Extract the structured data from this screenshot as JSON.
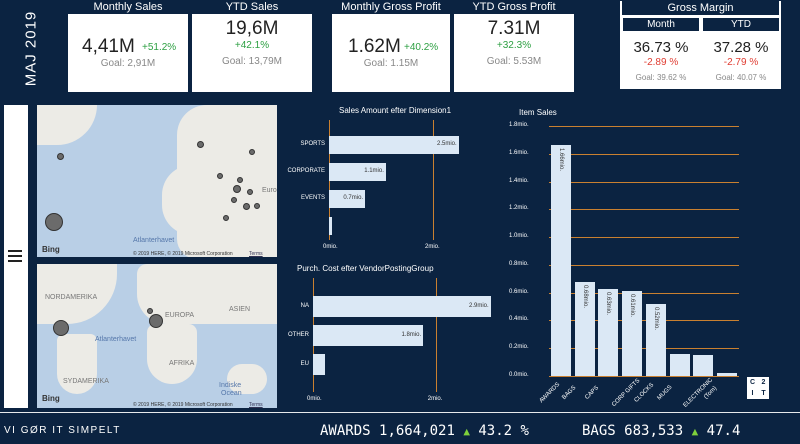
{
  "month_label": "MAJ 2019",
  "kpis": [
    {
      "title": "Monthly Sales",
      "value": "4,41M",
      "pct": "+51.2%",
      "goal": "Goal: 2,91M"
    },
    {
      "title": "YTD Sales",
      "value": "19,6M",
      "pct": "+42.1%",
      "goal": "Goal: 13,79M"
    },
    {
      "title": "Monthly Gross Profit",
      "value": "1.62M",
      "pct": "+40.2%",
      "goal": "Goal: 1.15M"
    },
    {
      "title": "YTD Gross Profit",
      "value": "7.31M",
      "pct": "+32.3%",
      "goal": "Goal: 5.53M"
    }
  ],
  "gross_margin": {
    "title": "Gross Margin",
    "month": {
      "label": "Month",
      "value": "36.73 %",
      "pct": "-2.89 %",
      "goal": "Goal: 39.62 %"
    },
    "ytd": {
      "label": "YTD",
      "value": "37.28 %",
      "pct": "-2.79 %",
      "goal": "Goal: 40.07 %"
    }
  },
  "maps": {
    "map1": {
      "ocean_label": "Atlanterhavet",
      "edge_label": "Euro",
      "bing": "Bing",
      "copyright": "© 2019 HERE, © 2019 Microsoft Corporation",
      "terms": "Terms"
    },
    "map2": {
      "labels": [
        "NORDAMERIKA",
        "EUROPA",
        "ASIEN",
        "Atlanterhavet",
        "AFRIKA",
        "SYDAMERIKA",
        "Indiske",
        "Ocean"
      ],
      "bing": "Bing",
      "copyright": "© 2019 HERE, © 2019 Microsoft Corporation",
      "terms": "Terms"
    }
  },
  "colors": {
    "background": "#0b2341",
    "positive": "#2ea043",
    "negative": "#e03c31",
    "bar": "#dbe8f5",
    "grid": "#c98030"
  },
  "chart_data": [
    {
      "type": "bar",
      "title": "Sales Amount efter Dimension1",
      "orientation": "horizontal",
      "categories": [
        "SPORTS",
        "CORPORATE",
        "EVENTS",
        ""
      ],
      "values": [
        2.5,
        1.1,
        0.7,
        0.05
      ],
      "value_labels": [
        "2.5mio.",
        "1.1mio.",
        "0.7mio.",
        ""
      ],
      "xticks": [
        "0mio.",
        "2mio."
      ],
      "xlim": [
        0,
        2.5
      ]
    },
    {
      "type": "bar",
      "title": "Purch. Cost efter VendorPostingGroup",
      "orientation": "horizontal",
      "categories": [
        "NA",
        "OTHER",
        "EU"
      ],
      "values": [
        2.9,
        1.8,
        0.2
      ],
      "value_labels": [
        "2.9mio.",
        "1.8mio.",
        ""
      ],
      "xticks": [
        "0mio.",
        "2mio."
      ],
      "xlim": [
        0,
        2.9
      ]
    },
    {
      "type": "bar",
      "title": "Item Sales",
      "orientation": "vertical",
      "categories": [
        "AWARDS",
        "BAGS",
        "CAPS",
        "CORP GIFTS",
        "CLOCKS",
        "MUGS",
        "ELECTRONIC",
        "(Tom)"
      ],
      "values": [
        1.66,
        0.68,
        0.63,
        0.61,
        0.52,
        0.16,
        0.15,
        0.02
      ],
      "value_labels": [
        "1.66mio.",
        "0.68mio.",
        "0.63mio.",
        "0.61mio.",
        "0.52mio.",
        "",
        "",
        ""
      ],
      "yticks": [
        "1.8mio.",
        "1.6mio.",
        "1.4mio.",
        "1.2mio.",
        "1.0mio.",
        "0.8mio.",
        "0.6mio.",
        "0.4mio.",
        "0.2mio.",
        "0.0mio."
      ],
      "ylim": [
        0,
        1.8
      ]
    }
  ],
  "footer": {
    "tagline": "VI GØR IT SIMPELT",
    "ticker": [
      {
        "name": "AWARDS",
        "amount": "1,664,021",
        "arrow": "▲",
        "pct": "43.2 %"
      },
      {
        "name": "BAGS",
        "amount": "683,533",
        "arrow": "▲",
        "pct": "47.4"
      }
    ]
  },
  "logo": [
    "C",
    "2",
    "I",
    "T"
  ]
}
